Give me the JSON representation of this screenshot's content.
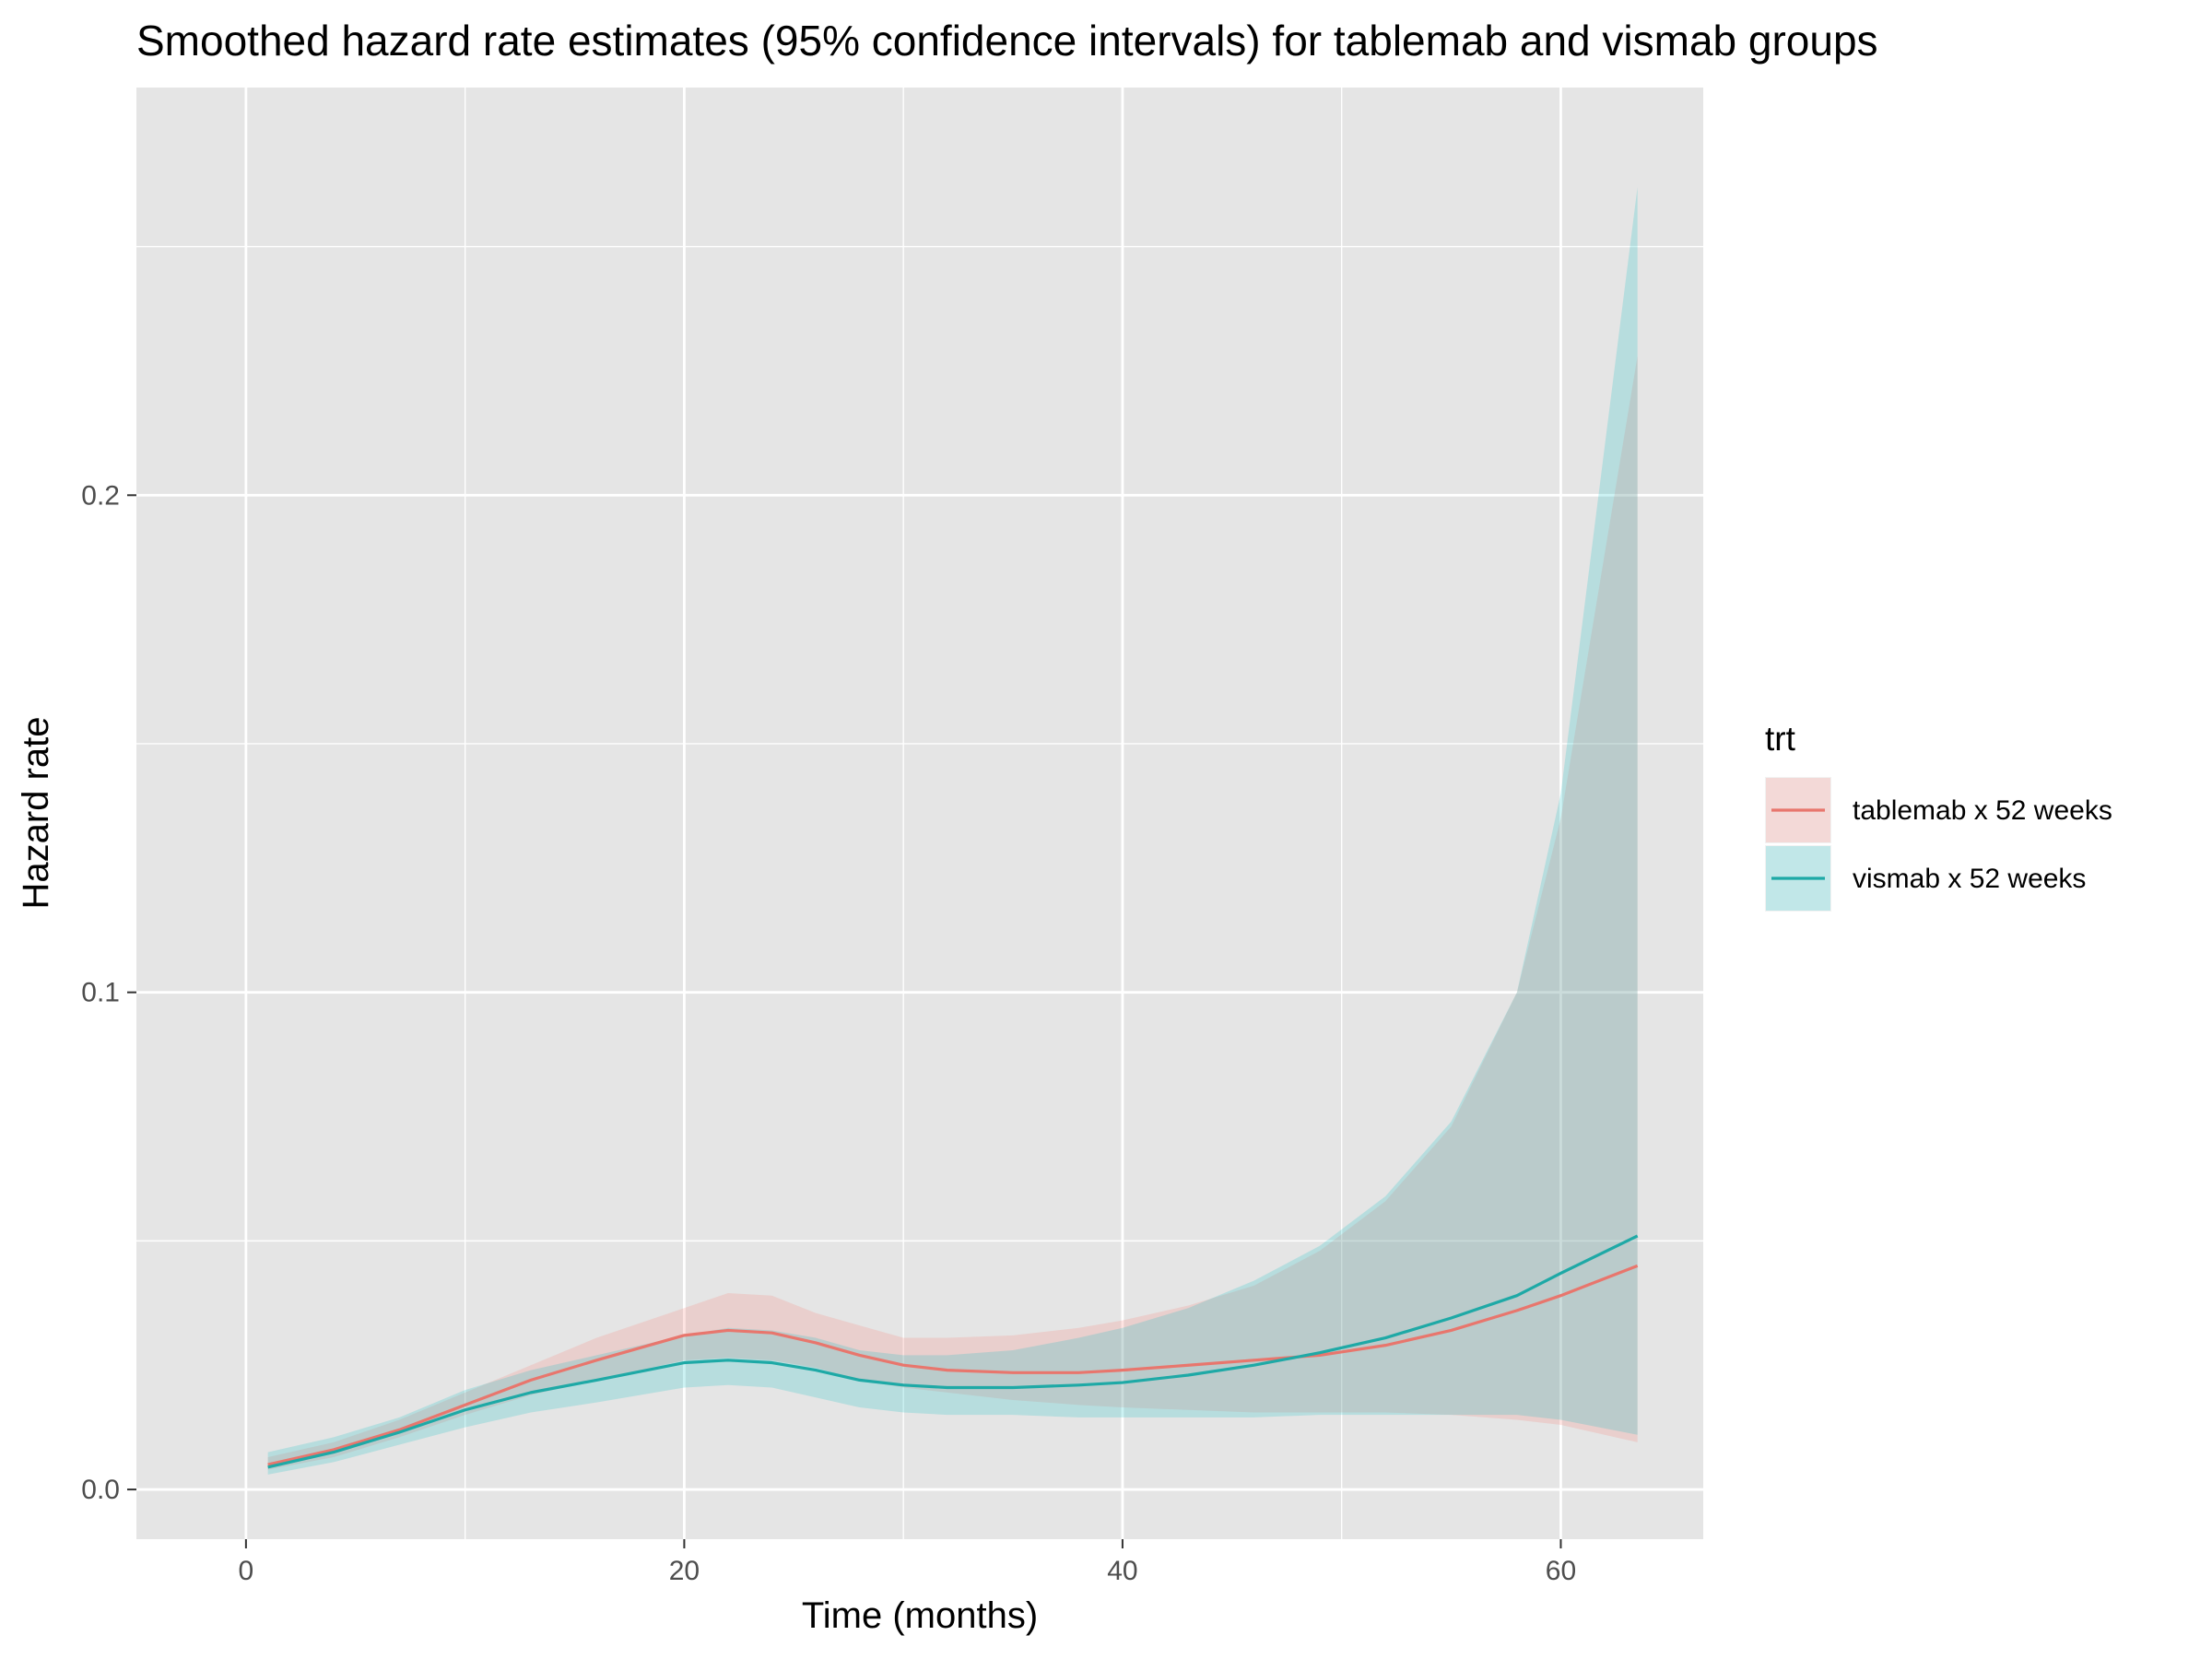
{
  "chart_data": {
    "type": "line",
    "title": "Smoothed hazard rate estimates (95% confidence intervals) for tablemab and vismab groups",
    "xlabel": "Time (months)",
    "ylabel": "Hazard rate",
    "xlim": [
      -5,
      66.5
    ],
    "ylim": [
      -0.01,
      0.282
    ],
    "x_ticks": [
      0,
      20,
      40,
      60
    ],
    "x_tick_labels": [
      "0",
      "20",
      "40",
      "60"
    ],
    "y_ticks": [
      0.0,
      0.1,
      0.2
    ],
    "y_tick_labels": [
      "0.0",
      "0.1",
      "0.2"
    ],
    "grid": true,
    "panel_background": "#e5e5e5",
    "legend": {
      "title": "trt",
      "placement": "right"
    },
    "series": [
      {
        "name": "tablemab x 52 weeks",
        "color": "#e8766d",
        "ribbon_color": "#f8766d",
        "x": [
          1,
          4,
          7,
          10,
          13,
          16,
          20,
          22,
          24,
          26,
          28,
          30,
          32,
          35,
          38,
          40,
          43,
          46,
          49,
          52,
          55,
          58,
          60,
          63.5
        ],
        "y": [
          0.005,
          0.008,
          0.012,
          0.017,
          0.022,
          0.026,
          0.031,
          0.032,
          0.0315,
          0.0295,
          0.027,
          0.025,
          0.024,
          0.0235,
          0.0235,
          0.024,
          0.025,
          0.026,
          0.027,
          0.029,
          0.032,
          0.036,
          0.039,
          0.045
        ],
        "lower": [
          0.004,
          0.0065,
          0.0105,
          0.015,
          0.019,
          0.022,
          0.026,
          0.0265,
          0.026,
          0.0245,
          0.022,
          0.0205,
          0.0195,
          0.018,
          0.017,
          0.0165,
          0.016,
          0.0155,
          0.0155,
          0.0155,
          0.015,
          0.014,
          0.013,
          0.0095
        ],
        "upper": [
          0.0065,
          0.0095,
          0.014,
          0.0195,
          0.025,
          0.0305,
          0.0365,
          0.0395,
          0.039,
          0.0355,
          0.033,
          0.0305,
          0.0305,
          0.031,
          0.0325,
          0.034,
          0.037,
          0.041,
          0.048,
          0.058,
          0.073,
          0.1,
          0.135,
          0.228
        ]
      },
      {
        "name": "vismab x 52 weeks",
        "color": "#1ea9a6",
        "ribbon_color": "#00bfc4",
        "x": [
          1,
          4,
          7,
          10,
          13,
          16,
          20,
          22,
          24,
          26,
          28,
          30,
          32,
          35,
          38,
          40,
          43,
          46,
          49,
          52,
          55,
          58,
          60,
          63.5
        ],
        "y": [
          0.0045,
          0.0075,
          0.0115,
          0.016,
          0.0195,
          0.022,
          0.0255,
          0.026,
          0.0255,
          0.024,
          0.022,
          0.021,
          0.0205,
          0.0205,
          0.021,
          0.0215,
          0.023,
          0.025,
          0.0275,
          0.0305,
          0.0345,
          0.039,
          0.0435,
          0.051
        ],
        "lower": [
          0.003,
          0.0055,
          0.009,
          0.0125,
          0.0155,
          0.0175,
          0.0205,
          0.021,
          0.0205,
          0.0185,
          0.0165,
          0.0155,
          0.015,
          0.015,
          0.0145,
          0.0145,
          0.0145,
          0.0145,
          0.015,
          0.015,
          0.015,
          0.015,
          0.014,
          0.011
        ],
        "upper": [
          0.0075,
          0.0105,
          0.0145,
          0.02,
          0.024,
          0.027,
          0.031,
          0.0325,
          0.032,
          0.0305,
          0.028,
          0.027,
          0.027,
          0.028,
          0.0305,
          0.0325,
          0.0365,
          0.042,
          0.049,
          0.059,
          0.074,
          0.1,
          0.14,
          0.262
        ]
      }
    ]
  }
}
